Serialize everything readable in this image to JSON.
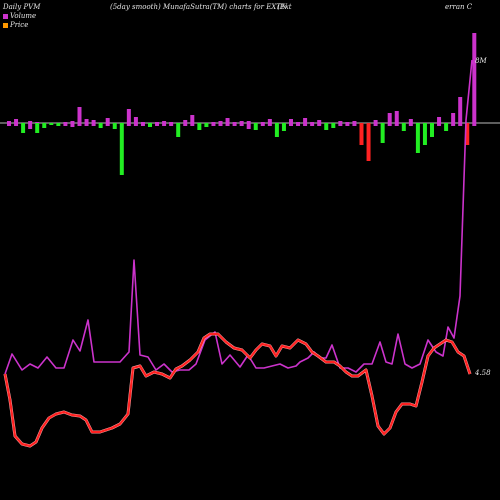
{
  "header": {
    "left": "Daily PVM",
    "mid": "(5day smooth) MunafaSutra(TM) charts for EXTN",
    "right1": "(Ext",
    "right2": "erran  C"
  },
  "chart_data": {
    "type": "line",
    "legend": [
      {
        "name": "Volume",
        "color": "#cc33cc"
      },
      {
        "name": "Price",
        "color": "#ff9900"
      }
    ],
    "right_labels": {
      "top": "8M",
      "bottom": "4.58"
    },
    "baseline_color": "#bbbbbb",
    "bar_series": {
      "up_color": "#ff2222",
      "down_color": "#22ee22",
      "neutral_color": "#cc33cc",
      "values": [
        [
          2,
          3,
          "n"
        ],
        [
          4,
          3,
          "n"
        ],
        [
          0,
          10,
          "g"
        ],
        [
          2,
          6,
          "n"
        ],
        [
          1,
          10,
          "g"
        ],
        [
          0,
          5,
          "g"
        ],
        [
          0,
          2,
          "g"
        ],
        [
          0,
          3,
          "g"
        ],
        [
          1,
          3,
          "n"
        ],
        [
          2,
          4,
          "n"
        ],
        [
          16,
          3,
          "n"
        ],
        [
          4,
          3,
          "n"
        ],
        [
          3,
          3,
          "n"
        ],
        [
          0,
          5,
          "g"
        ],
        [
          5,
          3,
          "n"
        ],
        [
          0,
          6,
          "g"
        ],
        [
          0,
          52,
          "g"
        ],
        [
          14,
          3,
          "n"
        ],
        [
          6,
          3,
          "n"
        ],
        [
          1,
          3,
          "n"
        ],
        [
          0,
          4,
          "g"
        ],
        [
          1,
          3,
          "n"
        ],
        [
          2,
          3,
          "n"
        ],
        [
          1,
          3,
          "n"
        ],
        [
          0,
          14,
          "g"
        ],
        [
          3,
          3,
          "n"
        ],
        [
          8,
          3,
          "n"
        ],
        [
          0,
          7,
          "g"
        ],
        [
          0,
          4,
          "g"
        ],
        [
          1,
          3,
          "n"
        ],
        [
          2,
          3,
          "n"
        ],
        [
          5,
          3,
          "n"
        ],
        [
          1,
          3,
          "n"
        ],
        [
          2,
          3,
          "n"
        ],
        [
          2,
          6,
          "n"
        ],
        [
          0,
          7,
          "g"
        ],
        [
          1,
          3,
          "n"
        ],
        [
          4,
          3,
          "n"
        ],
        [
          0,
          14,
          "g"
        ],
        [
          0,
          8,
          "g"
        ],
        [
          4,
          3,
          "n"
        ],
        [
          1,
          3,
          "n"
        ],
        [
          5,
          3,
          "n"
        ],
        [
          1,
          3,
          "n"
        ],
        [
          3,
          3,
          "n"
        ],
        [
          0,
          7,
          "g"
        ],
        [
          0,
          5,
          "g"
        ],
        [
          2,
          3,
          "n"
        ],
        [
          1,
          3,
          "n"
        ],
        [
          2,
          3,
          "n"
        ],
        [
          0,
          22,
          "r"
        ],
        [
          0,
          38,
          "r"
        ],
        [
          3,
          3,
          "n"
        ],
        [
          0,
          20,
          "g"
        ],
        [
          10,
          3,
          "n"
        ],
        [
          12,
          3,
          "n"
        ],
        [
          0,
          8,
          "g"
        ],
        [
          4,
          3,
          "n"
        ],
        [
          0,
          30,
          "g"
        ],
        [
          0,
          22,
          "g"
        ],
        [
          0,
          14,
          "g"
        ],
        [
          6,
          3,
          "n"
        ],
        [
          0,
          8,
          "g"
        ],
        [
          10,
          3,
          "n"
        ],
        [
          26,
          3,
          "n"
        ],
        [
          0,
          22,
          "r"
        ],
        [
          90,
          3,
          "n"
        ]
      ]
    },
    "volume_line": {
      "color": "#cc33cc",
      "points": [
        [
          5,
          374
        ],
        [
          12,
          354
        ],
        [
          22,
          370
        ],
        [
          30,
          364
        ],
        [
          38,
          368
        ],
        [
          47,
          357
        ],
        [
          56,
          368
        ],
        [
          64,
          368
        ],
        [
          73,
          340
        ],
        [
          80,
          351
        ],
        [
          88,
          320
        ],
        [
          94,
          362
        ],
        [
          103,
          362
        ],
        [
          112,
          362
        ],
        [
          120,
          362
        ],
        [
          129,
          352
        ],
        [
          134,
          260
        ],
        [
          140,
          355
        ],
        [
          148,
          357
        ],
        [
          156,
          370
        ],
        [
          164,
          364
        ],
        [
          172,
          372
        ],
        [
          180,
          370
        ],
        [
          189,
          370
        ],
        [
          196,
          364
        ],
        [
          205,
          340
        ],
        [
          215,
          332
        ],
        [
          222,
          364
        ],
        [
          230,
          355
        ],
        [
          240,
          367
        ],
        [
          248,
          355
        ],
        [
          256,
          368
        ],
        [
          264,
          368
        ],
        [
          272,
          366
        ],
        [
          280,
          364
        ],
        [
          288,
          368
        ],
        [
          296,
          366
        ],
        [
          300,
          362
        ],
        [
          308,
          358
        ],
        [
          314,
          352
        ],
        [
          320,
          358
        ],
        [
          326,
          358
        ],
        [
          332,
          345
        ],
        [
          340,
          368
        ],
        [
          348,
          368
        ],
        [
          356,
          372
        ],
        [
          364,
          364
        ],
        [
          372,
          364
        ],
        [
          380,
          342
        ],
        [
          386,
          362
        ],
        [
          392,
          364
        ],
        [
          398,
          334
        ],
        [
          405,
          364
        ],
        [
          412,
          368
        ],
        [
          420,
          364
        ],
        [
          428,
          340
        ],
        [
          436,
          352
        ],
        [
          443,
          356
        ],
        [
          448,
          327
        ],
        [
          454,
          338
        ],
        [
          460,
          296
        ],
        [
          466,
          120
        ],
        [
          472,
          60
        ]
      ]
    },
    "price_line": {
      "color": "#ff2222",
      "glow_color": "#ffbbbb",
      "points": [
        [
          5,
          374
        ],
        [
          10,
          400
        ],
        [
          15,
          436
        ],
        [
          22,
          444
        ],
        [
          30,
          446
        ],
        [
          36,
          442
        ],
        [
          42,
          428
        ],
        [
          49,
          418
        ],
        [
          56,
          414
        ],
        [
          64,
          412
        ],
        [
          72,
          415
        ],
        [
          80,
          416
        ],
        [
          86,
          420
        ],
        [
          92,
          432
        ],
        [
          100,
          432
        ],
        [
          106,
          430
        ],
        [
          112,
          428
        ],
        [
          120,
          424
        ],
        [
          128,
          414
        ],
        [
          133,
          368
        ],
        [
          140,
          366
        ],
        [
          146,
          376
        ],
        [
          154,
          372
        ],
        [
          162,
          374
        ],
        [
          170,
          378
        ],
        [
          176,
          369
        ],
        [
          182,
          366
        ],
        [
          190,
          360
        ],
        [
          198,
          352
        ],
        [
          204,
          338
        ],
        [
          210,
          334
        ],
        [
          218,
          334
        ],
        [
          226,
          342
        ],
        [
          234,
          348
        ],
        [
          242,
          350
        ],
        [
          250,
          358
        ],
        [
          256,
          350
        ],
        [
          262,
          344
        ],
        [
          270,
          346
        ],
        [
          276,
          356
        ],
        [
          282,
          346
        ],
        [
          290,
          348
        ],
        [
          298,
          340
        ],
        [
          306,
          344
        ],
        [
          312,
          352
        ],
        [
          318,
          356
        ],
        [
          326,
          362
        ],
        [
          334,
          362
        ],
        [
          340,
          366
        ],
        [
          346,
          372
        ],
        [
          352,
          376
        ],
        [
          358,
          376
        ],
        [
          366,
          370
        ],
        [
          372,
          396
        ],
        [
          378,
          426
        ],
        [
          384,
          434
        ],
        [
          390,
          428
        ],
        [
          396,
          412
        ],
        [
          402,
          404
        ],
        [
          410,
          404
        ],
        [
          416,
          406
        ],
        [
          422,
          382
        ],
        [
          428,
          356
        ],
        [
          434,
          348
        ],
        [
          440,
          344
        ],
        [
          446,
          340
        ],
        [
          452,
          342
        ],
        [
          458,
          352
        ],
        [
          464,
          356
        ],
        [
          470,
          374
        ]
      ]
    }
  }
}
